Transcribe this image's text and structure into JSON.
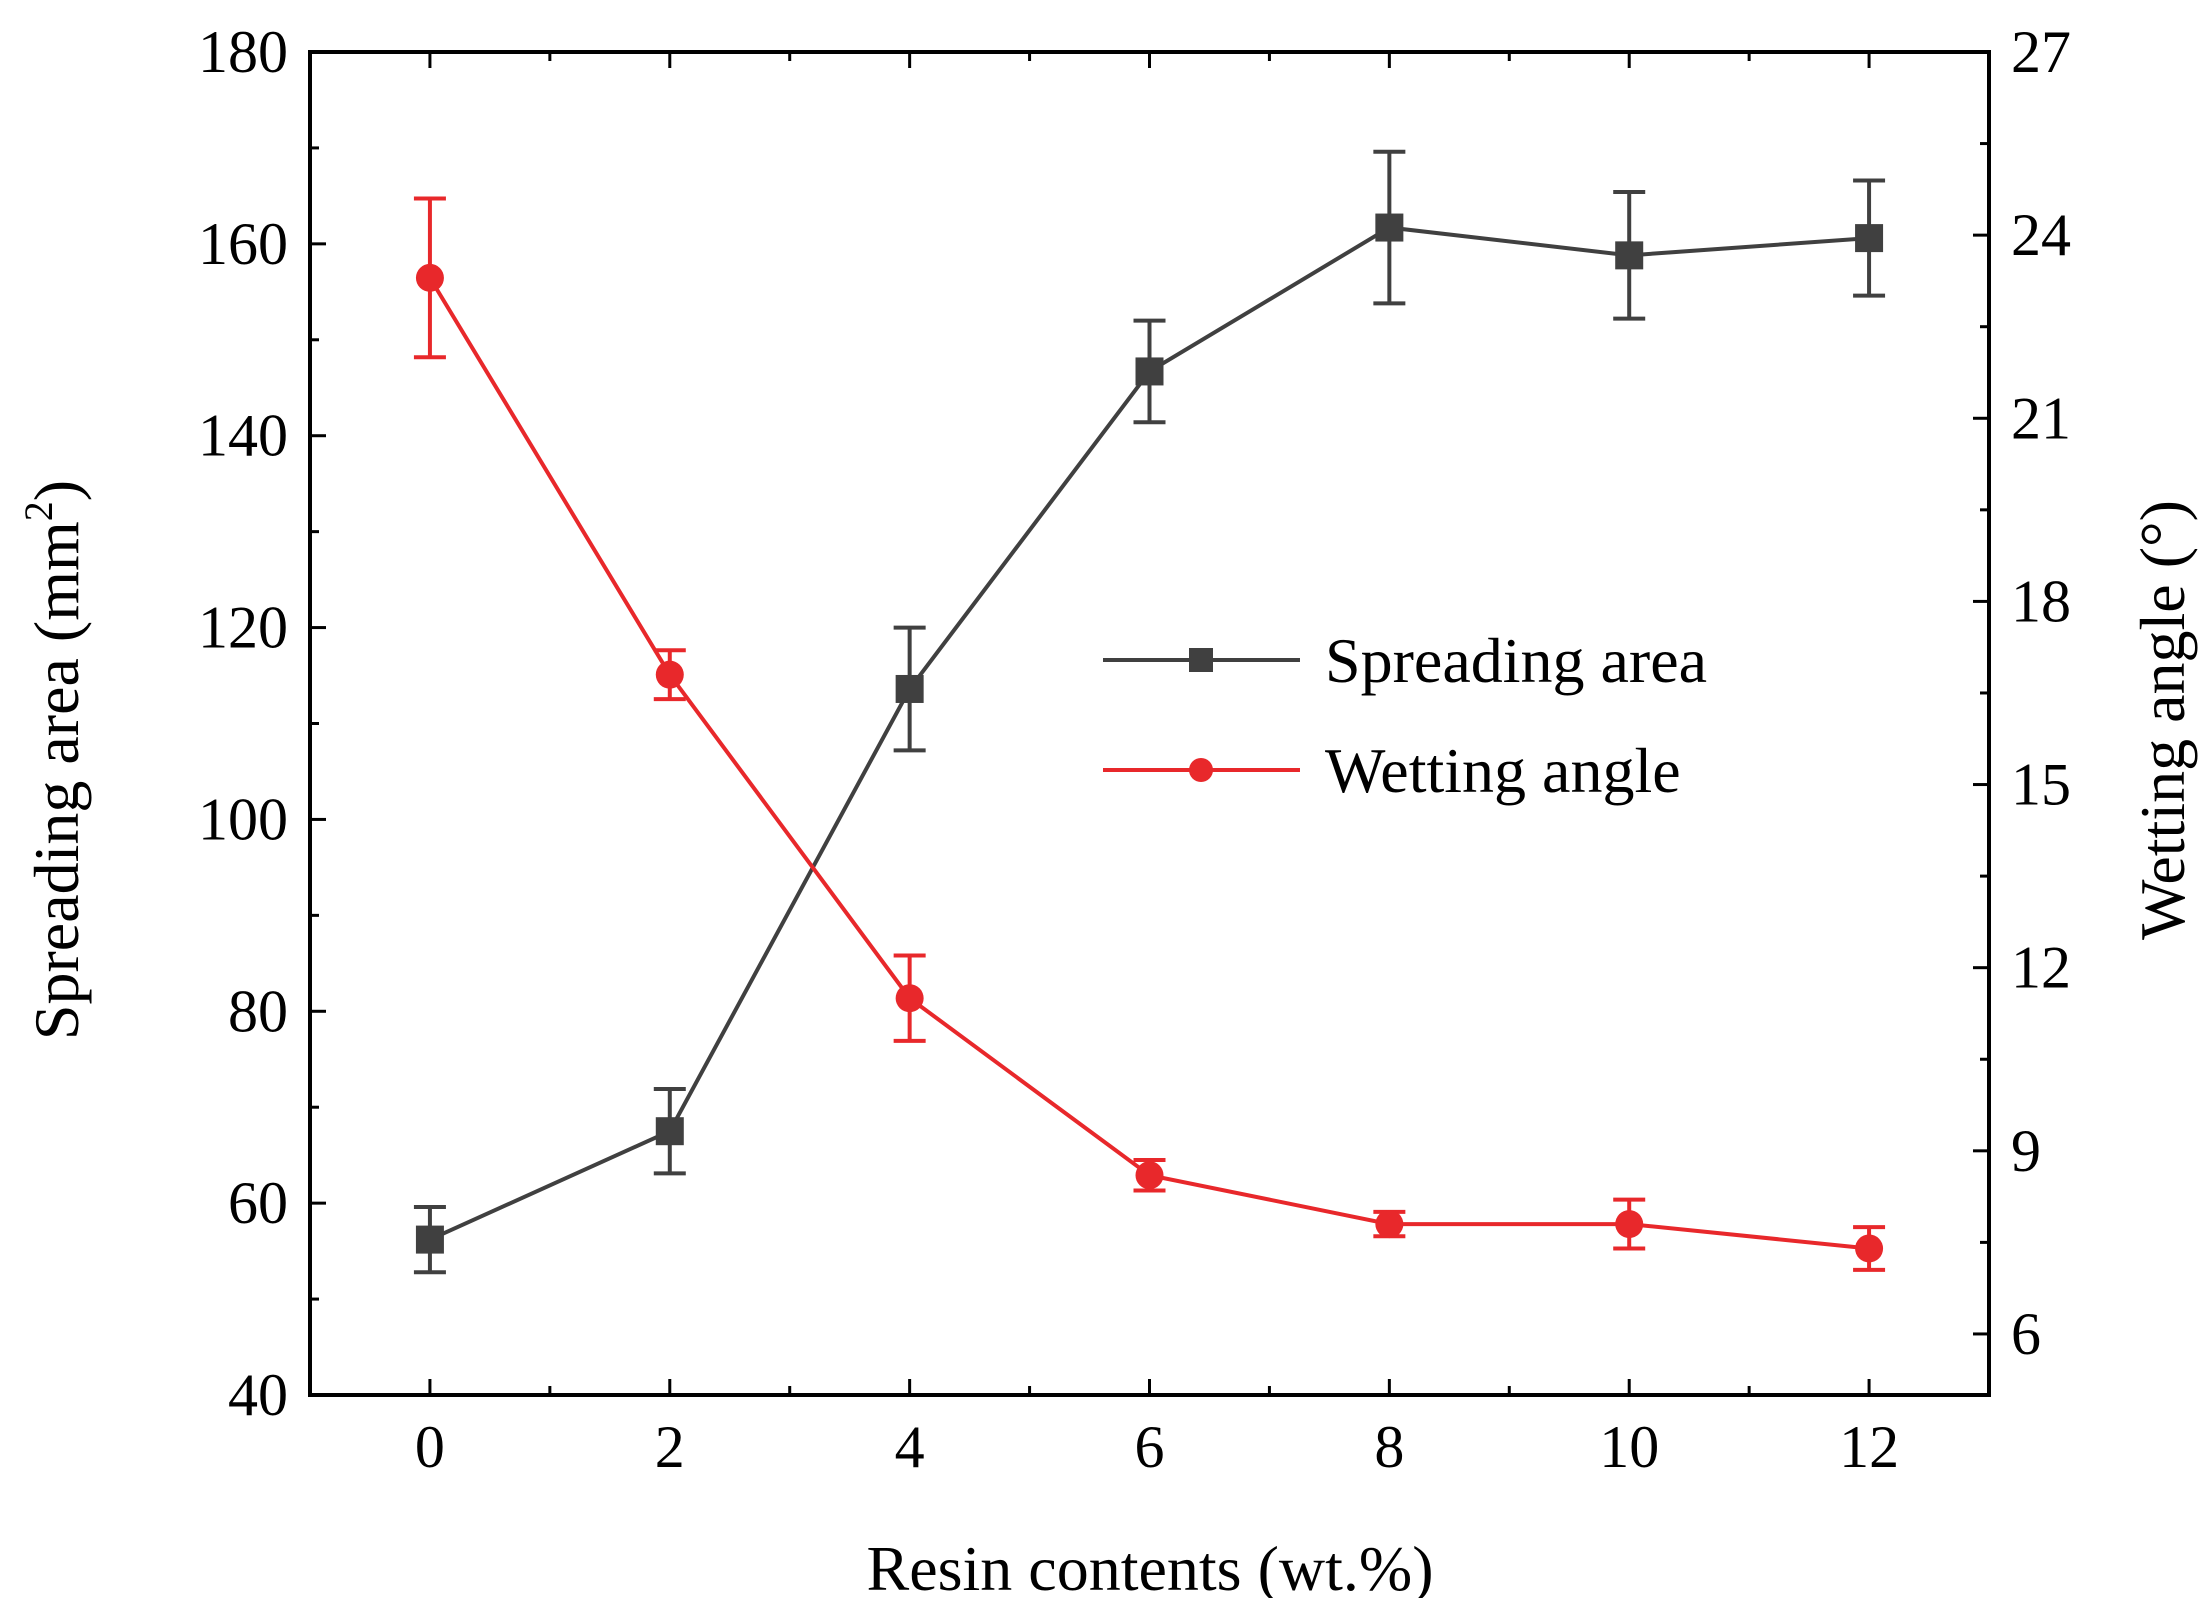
{
  "chart_data": {
    "type": "line",
    "title": "",
    "xlabel": "Resin contents (wt.%)",
    "ylabel_left": "Spreading area (mm²)",
    "ylabel_left_base": "Spreading area (mm",
    "ylabel_left_sup": "2",
    "ylabel_left_end": ")",
    "ylabel_right": "Wetting angle (°)",
    "x": [
      0,
      2,
      4,
      6,
      8,
      10,
      12
    ],
    "x_ticks": [
      "0",
      "2",
      "4",
      "6",
      "8",
      "10",
      "12"
    ],
    "xlim": [
      -1,
      13
    ],
    "ylim_left": [
      40,
      180
    ],
    "ylim_right": [
      5,
      27
    ],
    "y_left_ticks": [
      "40",
      "60",
      "80",
      "100",
      "120",
      "140",
      "160",
      "180"
    ],
    "y_right_ticks": [
      "6",
      "9",
      "12",
      "15",
      "18",
      "21",
      "24",
      "27"
    ],
    "legend_position": "center-right",
    "series": [
      {
        "name": "Spreading area",
        "axis": "left",
        "marker": "square",
        "color": "#404040",
        "values": [
          56.2,
          67.5,
          113.6,
          146.7,
          161.7,
          158.8,
          160.6
        ],
        "errors": [
          3.4,
          4.4,
          6.4,
          5.3,
          7.9,
          6.6,
          6.0
        ]
      },
      {
        "name": "Wetting angle",
        "axis": "right",
        "marker": "circle",
        "color": "#e8282b",
        "values": [
          23.3,
          16.8,
          11.5,
          8.6,
          7.8,
          7.8,
          7.4
        ],
        "errors": [
          1.3,
          0.4,
          0.7,
          0.25,
          0.2,
          0.4,
          0.35
        ]
      }
    ]
  }
}
